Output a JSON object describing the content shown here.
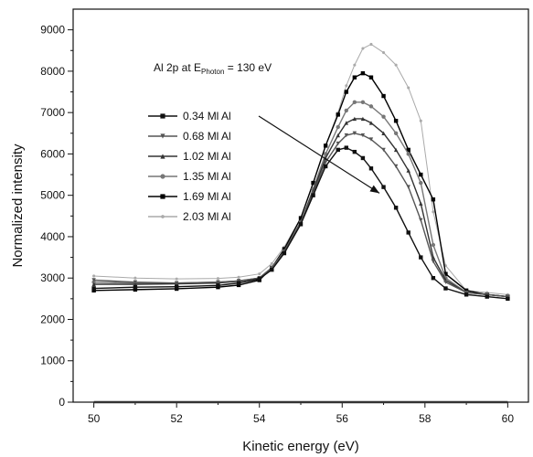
{
  "chart_data": {
    "type": "line",
    "title": "",
    "xlabel": "Kinetic energy (eV)",
    "ylabel": "Normalized intensity",
    "xlim": [
      49.5,
      60.5
    ],
    "ylim": [
      0,
      9500
    ],
    "x_ticks": [
      50,
      52,
      54,
      56,
      58,
      60
    ],
    "y_ticks": [
      0,
      1000,
      2000,
      3000,
      4000,
      5000,
      6000,
      7000,
      8000,
      9000
    ],
    "grid": false,
    "legend_position": "left-center",
    "annotation": {
      "prefix": "Al 2p at E",
      "subscript": "Photon",
      "suffix": " = 130 eV"
    },
    "series": [
      {
        "name": "0.34 Ml Al",
        "color": "#111111",
        "marker": "square",
        "x": [
          50,
          51,
          52,
          53,
          53.5,
          54,
          54.3,
          54.6,
          55,
          55.3,
          55.6,
          55.9,
          56.1,
          56.3,
          56.5,
          56.7,
          57,
          57.3,
          57.6,
          57.9,
          58.2,
          58.5,
          59,
          59.5,
          60
        ],
        "y": [
          2750,
          2780,
          2790,
          2820,
          2880,
          2980,
          3200,
          3600,
          4300,
          5000,
          5700,
          6100,
          6150,
          6050,
          5900,
          5650,
          5200,
          4700,
          4100,
          3500,
          3000,
          2750,
          2600,
          2550,
          2500
        ]
      },
      {
        "name": "0.68 Ml Al",
        "color": "#555555",
        "marker": "triangle-down",
        "x": [
          50,
          51,
          52,
          53,
          53.5,
          54,
          54.3,
          54.6,
          55,
          55.3,
          55.6,
          55.9,
          56.1,
          56.3,
          56.5,
          56.7,
          57,
          57.3,
          57.6,
          57.9,
          58.2,
          58.5,
          59,
          59.5,
          60
        ],
        "y": [
          2950,
          2900,
          2880,
          2900,
          2930,
          3000,
          3250,
          3650,
          4350,
          5050,
          5800,
          6250,
          6450,
          6500,
          6450,
          6350,
          6100,
          5700,
          5200,
          4400,
          3400,
          2900,
          2650,
          2600,
          2550
        ]
      },
      {
        "name": "1.02 Ml Al",
        "color": "#333333",
        "marker": "triangle-up",
        "x": [
          50,
          51,
          52,
          53,
          53.5,
          54,
          54.3,
          54.6,
          55,
          55.3,
          55.6,
          55.9,
          56.1,
          56.3,
          56.5,
          56.7,
          57,
          57.3,
          57.6,
          57.9,
          58.2,
          58.5,
          59,
          59.5,
          60
        ],
        "y": [
          2850,
          2850,
          2860,
          2880,
          2920,
          3000,
          3250,
          3650,
          4350,
          5100,
          5900,
          6450,
          6750,
          6850,
          6850,
          6750,
          6500,
          6100,
          5600,
          4800,
          3500,
          2950,
          2650,
          2600,
          2550
        ]
      },
      {
        "name": "1.35 Ml Al",
        "color": "#777777",
        "marker": "circle",
        "x": [
          50,
          51,
          52,
          53,
          53.5,
          54,
          54.3,
          54.6,
          55,
          55.3,
          55.6,
          55.9,
          56.1,
          56.3,
          56.5,
          56.7,
          57,
          57.3,
          57.6,
          57.9,
          58.2,
          58.5,
          59,
          59.5,
          60
        ],
        "y": [
          2900,
          2880,
          2880,
          2900,
          2930,
          3000,
          3250,
          3650,
          4350,
          5150,
          6000,
          6650,
          7050,
          7250,
          7250,
          7150,
          6900,
          6500,
          6000,
          5300,
          3800,
          3000,
          2650,
          2600,
          2550
        ]
      },
      {
        "name": "1.69 Ml Al",
        "color": "#000000",
        "marker": "square",
        "x": [
          50,
          51,
          52,
          53,
          53.5,
          54,
          54.3,
          54.6,
          55,
          55.3,
          55.6,
          55.9,
          56.1,
          56.3,
          56.5,
          56.7,
          57,
          57.3,
          57.6,
          57.9,
          58.2,
          58.5,
          59,
          59.5,
          60
        ],
        "y": [
          2700,
          2720,
          2740,
          2780,
          2830,
          2950,
          3250,
          3700,
          4450,
          5300,
          6200,
          6950,
          7500,
          7850,
          7950,
          7850,
          7400,
          6800,
          6100,
          5500,
          4900,
          3100,
          2700,
          2600,
          2550
        ]
      },
      {
        "name": "2.03 Ml Al",
        "color": "#aaaaaa",
        "marker": "dot",
        "x": [
          50,
          51,
          52,
          53,
          53.5,
          54,
          54.3,
          54.6,
          55,
          55.3,
          55.6,
          55.9,
          56.1,
          56.3,
          56.5,
          56.7,
          57,
          57.3,
          57.6,
          57.9,
          58.2,
          58.5,
          59,
          59.5,
          60
        ],
        "y": [
          3050,
          3000,
          2980,
          2990,
          3020,
          3100,
          3350,
          3750,
          4450,
          5300,
          6200,
          7000,
          7650,
          8150,
          8550,
          8650,
          8450,
          8150,
          7600,
          6800,
          4600,
          3300,
          2700,
          2650,
          2600
        ]
      }
    ]
  }
}
